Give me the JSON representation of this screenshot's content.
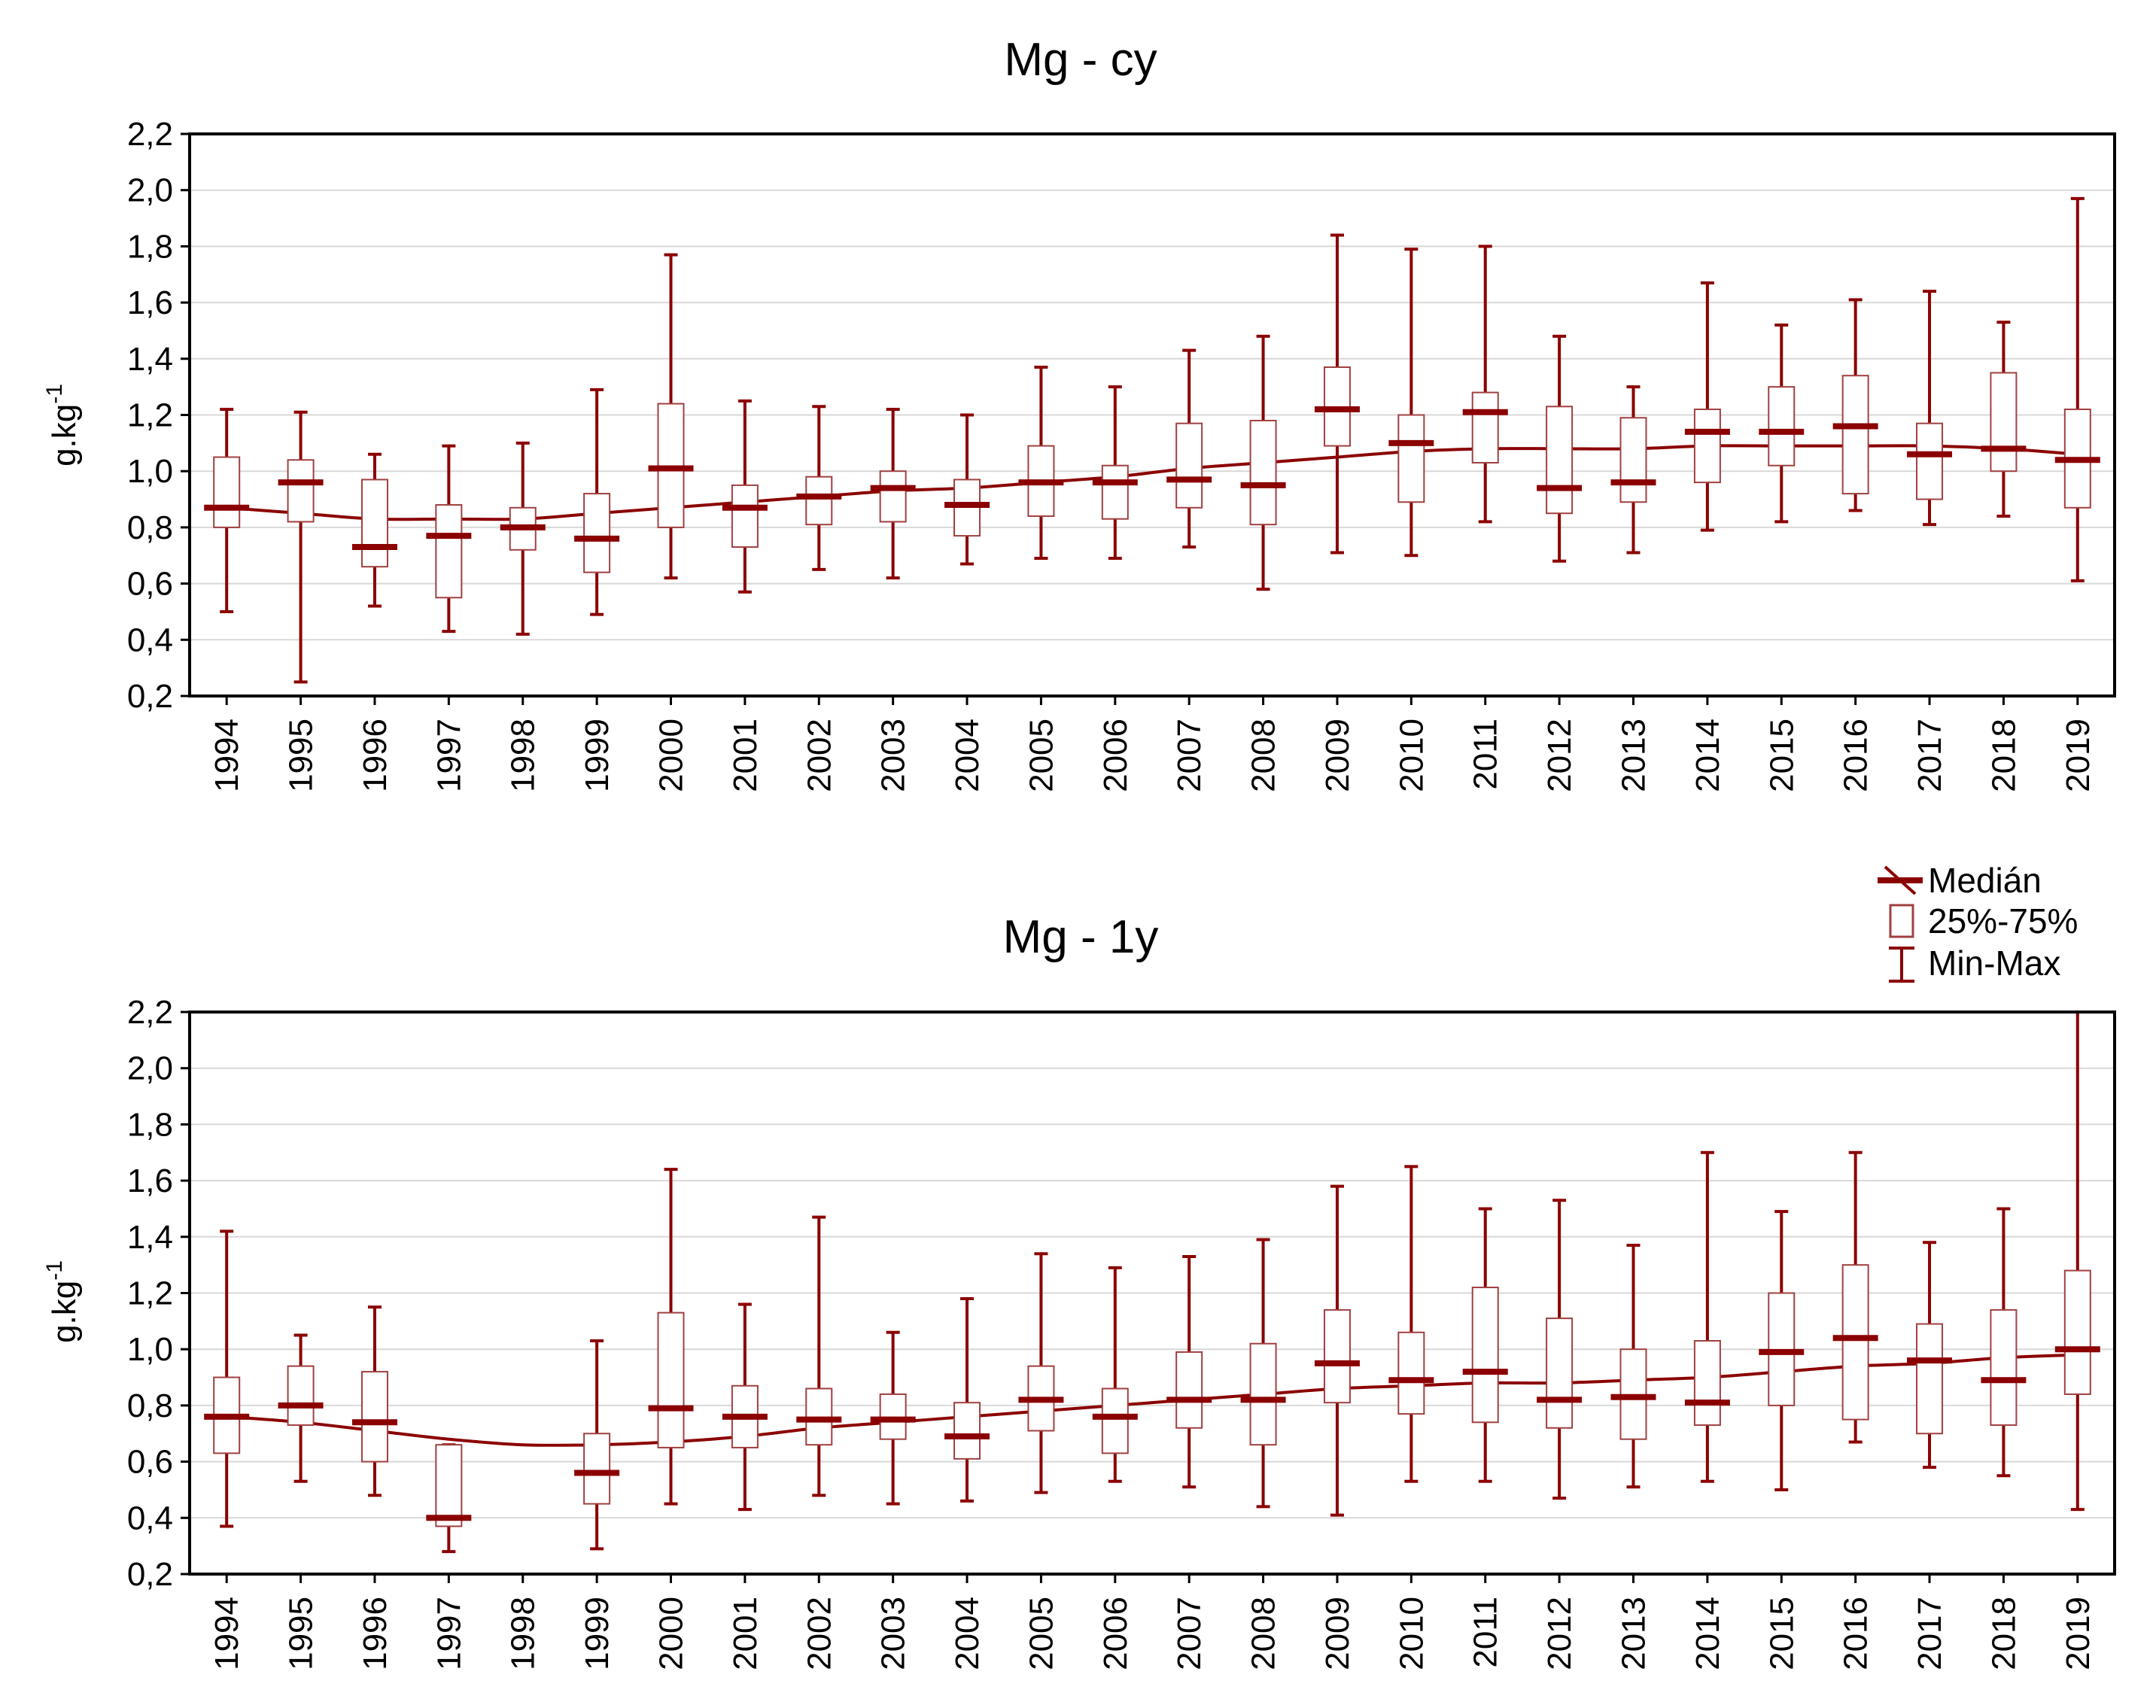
{
  "colors": {
    "series": "#8B0000",
    "box": "#A04040",
    "grid": "#d8d8d8",
    "frame": "#000000"
  },
  "legend": {
    "items": [
      {
        "label": "Medián",
        "icon": "median-line-icon"
      },
      {
        "label": "25%-75%",
        "icon": "box-icon"
      },
      {
        "label": "Min-Max",
        "icon": "whisker-icon"
      }
    ]
  },
  "chart_data": [
    {
      "type": "box",
      "title": "Mg - cy",
      "xlabel": "",
      "ylabel": "g.kg",
      "ylabel_superscript": "-1",
      "ylim": [
        0.2,
        2.2
      ],
      "yticks": [
        "0,2",
        "0,4",
        "0,6",
        "0,8",
        "1,0",
        "1,2",
        "1,4",
        "1,6",
        "1,8",
        "2,0",
        "2,2"
      ],
      "categories": [
        "1994",
        "1995",
        "1996",
        "1997",
        "1998",
        "1999",
        "2000",
        "2001",
        "2002",
        "2003",
        "2004",
        "2005",
        "2006",
        "2007",
        "2008",
        "2009",
        "2010",
        "2011",
        "2012",
        "2013",
        "2014",
        "2015",
        "2016",
        "2017",
        "2018",
        "2019"
      ],
      "min": [
        0.5,
        0.25,
        0.52,
        0.43,
        0.42,
        0.49,
        0.62,
        0.57,
        0.65,
        0.62,
        0.67,
        0.69,
        0.69,
        0.73,
        0.58,
        0.71,
        0.7,
        0.82,
        0.68,
        0.71,
        0.79,
        0.82,
        0.86,
        0.81,
        0.84,
        0.61
      ],
      "q1": [
        0.8,
        0.82,
        0.66,
        0.55,
        0.72,
        0.64,
        0.8,
        0.73,
        0.81,
        0.82,
        0.77,
        0.84,
        0.83,
        0.87,
        0.81,
        1.09,
        0.89,
        1.03,
        0.85,
        0.89,
        0.96,
        1.02,
        0.92,
        0.9,
        1.0,
        0.87
      ],
      "median": [
        0.87,
        0.96,
        0.73,
        0.77,
        0.8,
        0.76,
        1.01,
        0.87,
        0.91,
        0.94,
        0.88,
        0.96,
        0.96,
        0.97,
        0.95,
        1.22,
        1.1,
        1.21,
        0.94,
        0.96,
        1.14,
        1.14,
        1.16,
        1.06,
        1.08,
        1.04
      ],
      "q3": [
        1.05,
        1.04,
        0.97,
        0.88,
        0.87,
        0.92,
        1.24,
        0.95,
        0.98,
        1.0,
        0.97,
        1.09,
        1.02,
        1.17,
        1.18,
        1.37,
        1.2,
        1.28,
        1.23,
        1.19,
        1.22,
        1.3,
        1.34,
        1.17,
        1.35,
        1.22
      ],
      "max": [
        1.22,
        1.21,
        1.06,
        1.09,
        1.1,
        1.29,
        1.77,
        1.25,
        1.23,
        1.22,
        1.2,
        1.37,
        1.3,
        1.43,
        1.48,
        1.84,
        1.79,
        1.8,
        1.48,
        1.3,
        1.67,
        1.52,
        1.61,
        1.64,
        1.53,
        1.97
      ],
      "trend": [
        0.87,
        0.85,
        0.83,
        0.83,
        0.83,
        0.85,
        0.87,
        0.89,
        0.91,
        0.93,
        0.94,
        0.96,
        0.98,
        1.01,
        1.03,
        1.05,
        1.07,
        1.08,
        1.08,
        1.08,
        1.09,
        1.09,
        1.09,
        1.09,
        1.08,
        1.06
      ]
    },
    {
      "type": "box",
      "title": "Mg - 1y",
      "xlabel": "",
      "ylabel": "g.kg",
      "ylabel_superscript": "-1",
      "ylim": [
        0.2,
        2.2
      ],
      "yticks": [
        "0,2",
        "0,4",
        "0,6",
        "0,8",
        "1,0",
        "1,2",
        "1,4",
        "1,6",
        "1,8",
        "2,0",
        "2,2"
      ],
      "categories": [
        "1994",
        "1995",
        "1996",
        "1997",
        "1998",
        "1999",
        "2000",
        "2001",
        "2002",
        "2003",
        "2004",
        "2005",
        "2006",
        "2007",
        "2008",
        "2009",
        "2010",
        "2011",
        "2012",
        "2013",
        "2014",
        "2015",
        "2016",
        "2017",
        "2018",
        "2019"
      ],
      "min": [
        0.37,
        0.53,
        0.48,
        0.28,
        null,
        0.29,
        0.45,
        0.43,
        0.48,
        0.45,
        0.46,
        0.49,
        0.53,
        0.51,
        0.44,
        0.41,
        0.53,
        0.53,
        0.47,
        0.51,
        0.53,
        0.5,
        0.67,
        0.58,
        0.55,
        0.43
      ],
      "q1": [
        0.63,
        0.73,
        0.6,
        0.37,
        null,
        0.45,
        0.65,
        0.65,
        0.66,
        0.68,
        0.61,
        0.71,
        0.63,
        0.72,
        0.66,
        0.81,
        0.77,
        0.74,
        0.72,
        0.68,
        0.73,
        0.8,
        0.75,
        0.7,
        0.73,
        0.84
      ],
      "median": [
        0.76,
        0.8,
        0.74,
        0.4,
        null,
        0.56,
        0.79,
        0.76,
        0.75,
        0.75,
        0.69,
        0.82,
        0.76,
        0.82,
        0.82,
        0.95,
        0.89,
        0.92,
        0.82,
        0.83,
        0.81,
        0.99,
        1.04,
        0.96,
        0.89,
        1.0
      ],
      "q3": [
        0.9,
        0.94,
        0.92,
        0.66,
        null,
        0.7,
        1.13,
        0.87,
        0.86,
        0.84,
        0.81,
        0.94,
        0.86,
        0.99,
        1.02,
        1.14,
        1.06,
        1.22,
        1.11,
        1.0,
        1.03,
        1.2,
        1.3,
        1.09,
        1.14,
        1.28
      ],
      "max": [
        1.42,
        1.05,
        1.15,
        0.66,
        null,
        1.03,
        1.64,
        1.16,
        1.47,
        1.06,
        1.18,
        1.34,
        1.29,
        1.33,
        1.39,
        1.58,
        1.65,
        1.5,
        1.53,
        1.37,
        1.7,
        1.49,
        1.7,
        1.38,
        1.5,
        2.2
      ],
      "trend": [
        0.76,
        0.74,
        0.71,
        0.68,
        0.66,
        0.66,
        0.67,
        0.69,
        0.72,
        0.74,
        0.76,
        0.78,
        0.8,
        0.82,
        0.84,
        0.86,
        0.87,
        0.88,
        0.88,
        0.89,
        0.9,
        0.92,
        0.94,
        0.95,
        0.97,
        0.98
      ]
    }
  ]
}
